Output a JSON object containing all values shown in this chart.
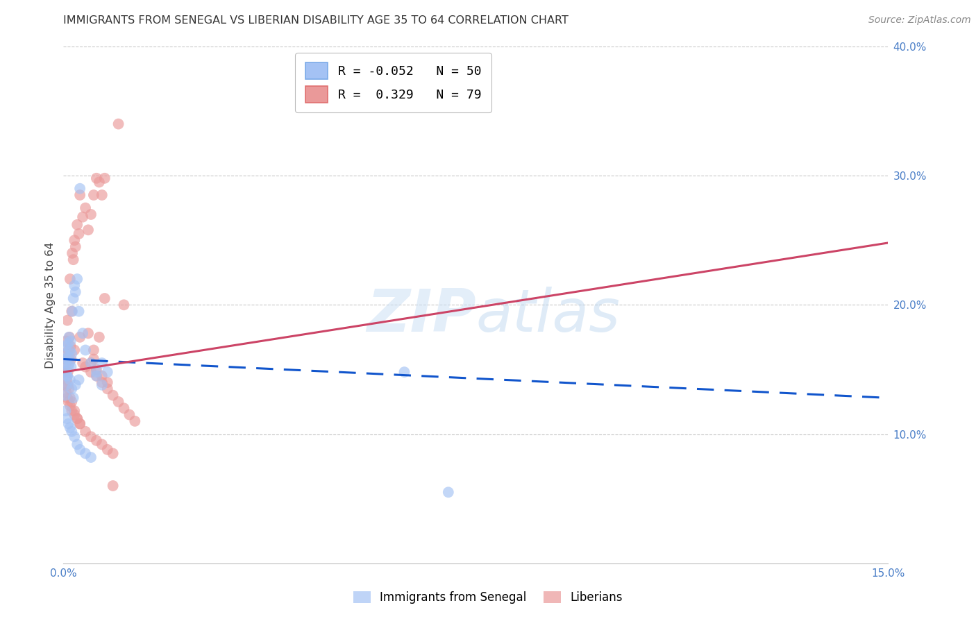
{
  "title": "IMMIGRANTS FROM SENEGAL VS LIBERIAN DISABILITY AGE 35 TO 64 CORRELATION CHART",
  "source": "Source: ZipAtlas.com",
  "ylabel": "Disability Age 35 to 64",
  "x_min": 0.0,
  "x_max": 0.15,
  "y_min": 0.0,
  "y_max": 0.4,
  "y_ticks_right": [
    0.1,
    0.2,
    0.3,
    0.4
  ],
  "y_tick_labels_right": [
    "10.0%",
    "20.0%",
    "30.0%",
    "40.0%"
  ],
  "background_color": "#ffffff",
  "grid_color": "#c8c8c8",
  "watermark": "ZIPatlas",
  "senegal_color": "#a4c2f4",
  "liberian_color": "#ea9999",
  "senegal_line_color": "#1155cc",
  "liberian_line_color": "#cc4466",
  "legend_box_color_senegal": "#a4c2f4",
  "legend_box_color_liberian": "#ea9999",
  "R_senegal": -0.052,
  "N_senegal": 50,
  "R_liberian": 0.329,
  "N_liberian": 79,
  "senegal_x": [
    0.0002,
    0.0003,
    0.0004,
    0.0005,
    0.0006,
    0.0007,
    0.0008,
    0.0009,
    0.001,
    0.0011,
    0.0012,
    0.0013,
    0.0014,
    0.0015,
    0.0016,
    0.0018,
    0.002,
    0.0022,
    0.0025,
    0.0028,
    0.003,
    0.0003,
    0.0005,
    0.0007,
    0.0009,
    0.0012,
    0.0015,
    0.0018,
    0.0022,
    0.0028,
    0.0035,
    0.004,
    0.005,
    0.006,
    0.007,
    0.008,
    0.0004,
    0.0006,
    0.0009,
    0.0012,
    0.0015,
    0.002,
    0.0025,
    0.003,
    0.004,
    0.005,
    0.006,
    0.007,
    0.062,
    0.07
  ],
  "senegal_y": [
    0.155,
    0.162,
    0.148,
    0.168,
    0.158,
    0.145,
    0.17,
    0.16,
    0.175,
    0.155,
    0.165,
    0.172,
    0.152,
    0.162,
    0.195,
    0.205,
    0.215,
    0.21,
    0.22,
    0.195,
    0.29,
    0.13,
    0.138,
    0.145,
    0.152,
    0.142,
    0.135,
    0.128,
    0.138,
    0.142,
    0.178,
    0.165,
    0.155,
    0.148,
    0.155,
    0.148,
    0.118,
    0.112,
    0.108,
    0.105,
    0.102,
    0.098,
    0.092,
    0.088,
    0.085,
    0.082,
    0.145,
    0.138,
    0.148,
    0.055
  ],
  "liberian_x": [
    0.0002,
    0.0003,
    0.0004,
    0.0005,
    0.0006,
    0.0007,
    0.0008,
    0.0009,
    0.001,
    0.0011,
    0.0012,
    0.0013,
    0.0014,
    0.0015,
    0.0016,
    0.0018,
    0.002,
    0.0022,
    0.0025,
    0.0028,
    0.003,
    0.0035,
    0.004,
    0.0045,
    0.005,
    0.0055,
    0.006,
    0.0065,
    0.007,
    0.0075,
    0.0003,
    0.0005,
    0.0007,
    0.0009,
    0.0012,
    0.0015,
    0.002,
    0.0025,
    0.003,
    0.0035,
    0.004,
    0.005,
    0.006,
    0.007,
    0.008,
    0.009,
    0.01,
    0.011,
    0.012,
    0.013,
    0.0004,
    0.0006,
    0.0008,
    0.001,
    0.0012,
    0.0015,
    0.002,
    0.0025,
    0.003,
    0.004,
    0.005,
    0.006,
    0.007,
    0.008,
    0.009,
    0.002,
    0.003,
    0.0045,
    0.0055,
    0.0065,
    0.0075,
    0.005,
    0.006,
    0.007,
    0.008,
    0.009,
    0.0055,
    0.01,
    0.011
  ],
  "liberian_y": [
    0.148,
    0.158,
    0.162,
    0.172,
    0.155,
    0.188,
    0.148,
    0.165,
    0.158,
    0.175,
    0.22,
    0.168,
    0.158,
    0.195,
    0.24,
    0.235,
    0.25,
    0.245,
    0.262,
    0.255,
    0.285,
    0.268,
    0.275,
    0.258,
    0.27,
    0.285,
    0.298,
    0.295,
    0.285,
    0.298,
    0.138,
    0.132,
    0.128,
    0.125,
    0.122,
    0.118,
    0.115,
    0.112,
    0.108,
    0.155,
    0.152,
    0.148,
    0.145,
    0.14,
    0.135,
    0.13,
    0.125,
    0.12,
    0.115,
    0.11,
    0.148,
    0.142,
    0.138,
    0.135,
    0.128,
    0.125,
    0.118,
    0.112,
    0.108,
    0.102,
    0.098,
    0.095,
    0.092,
    0.088,
    0.085,
    0.165,
    0.175,
    0.178,
    0.158,
    0.175,
    0.205,
    0.155,
    0.15,
    0.145,
    0.14,
    0.06,
    0.165,
    0.34,
    0.2
  ],
  "sen_line_x": [
    0.0,
    0.15
  ],
  "sen_line_y": [
    0.158,
    0.128
  ],
  "lib_line_x": [
    0.0,
    0.15
  ],
  "lib_line_y": [
    0.148,
    0.248
  ]
}
